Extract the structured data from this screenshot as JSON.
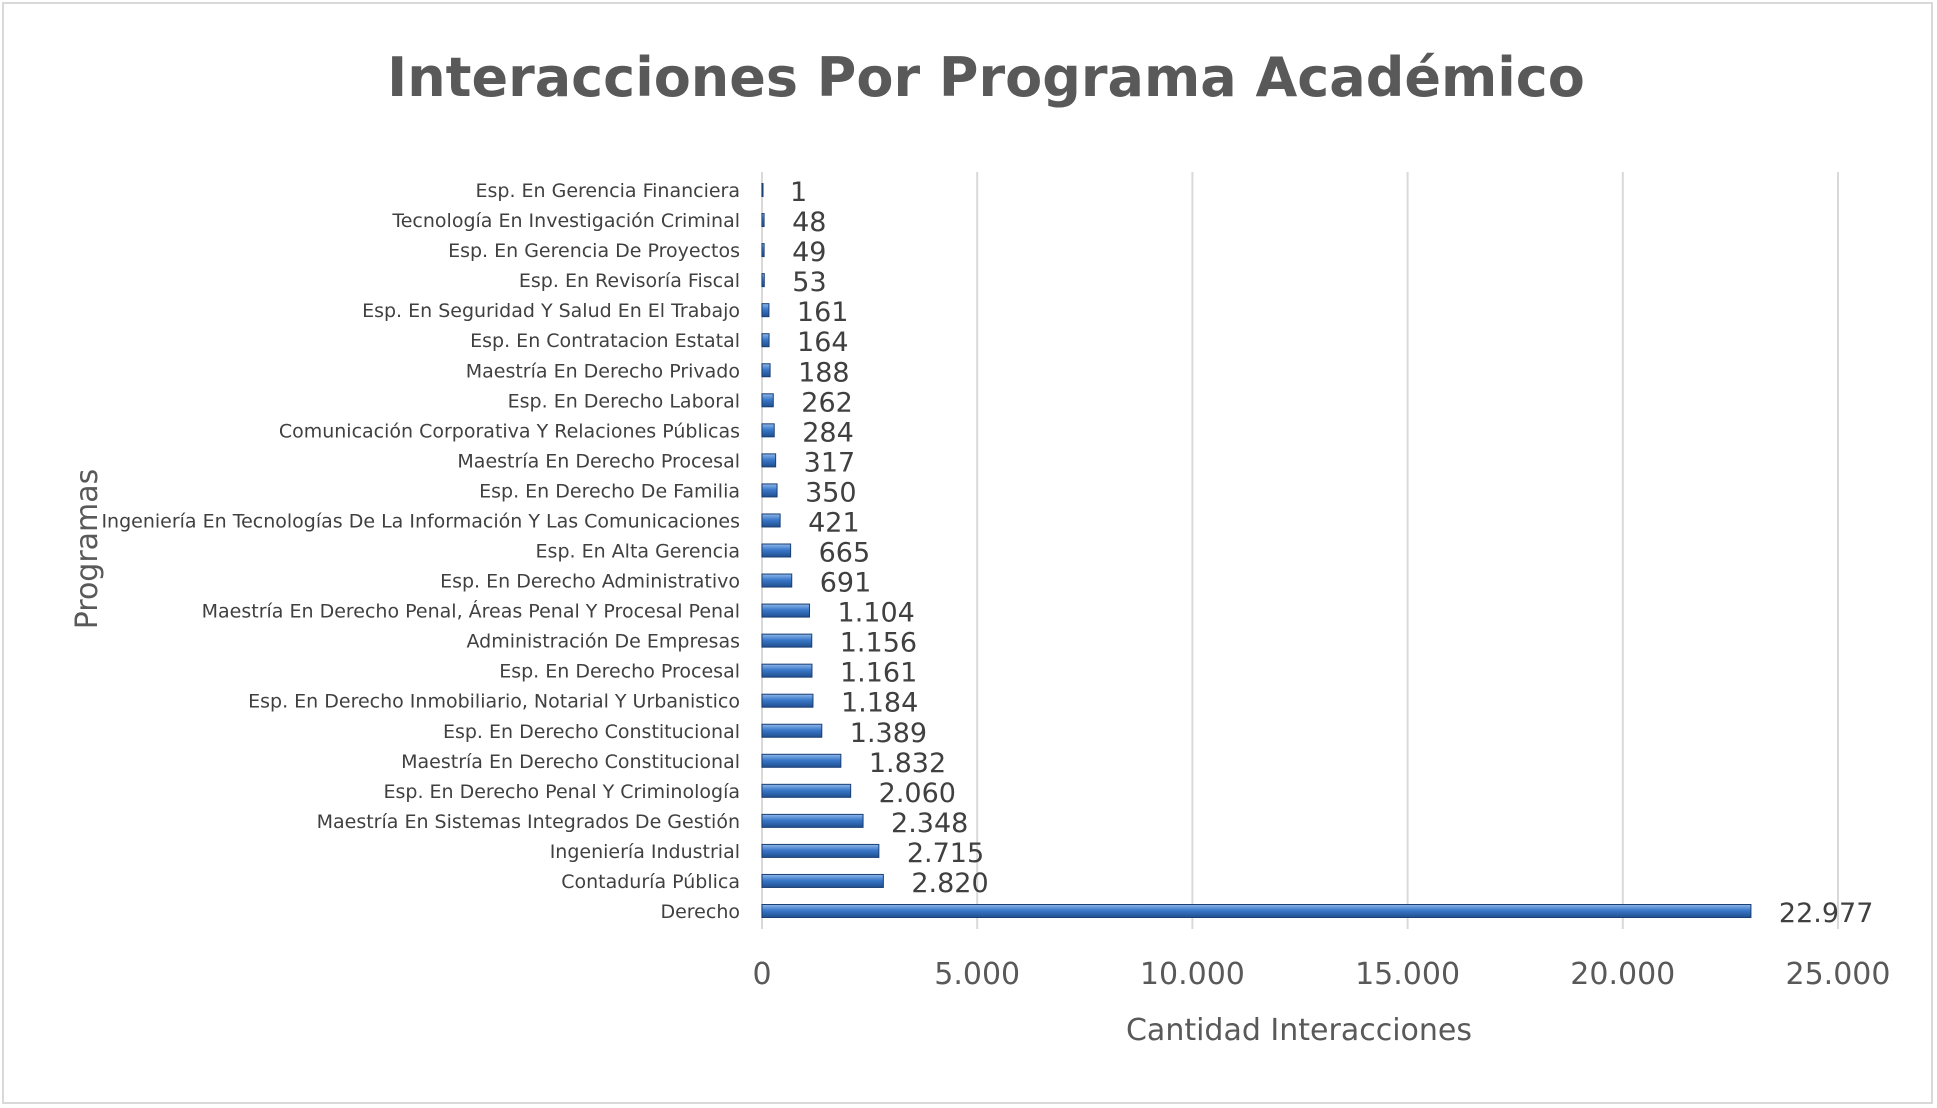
{
  "chart_data": {
    "type": "bar",
    "orientation": "horizontal",
    "title": "Interacciones Por Programa Académico",
    "xlabel": "Cantidad Interacciones",
    "ylabel": "Programas",
    "xlim": [
      0,
      25000
    ],
    "x_ticks": [
      0,
      5000,
      10000,
      15000,
      20000,
      25000
    ],
    "x_tick_labels": [
      "0",
      "5.000",
      "10.000",
      "15.000",
      "20.000",
      "25.000"
    ],
    "grid": "vertical",
    "legend": "none",
    "bar_color": "#3a78c9",
    "categories": [
      "Derecho",
      "Contaduría Pública",
      "Ingeniería Industrial",
      "Maestría En Sistemas Integrados De Gestión",
      "Esp. En Derecho Penal Y Criminología",
      "Maestría En Derecho Constitucional",
      "Esp. En Derecho Constitucional",
      "Esp. En Derecho Inmobiliario, Notarial Y Urbanistico",
      "Esp. En Derecho Procesal",
      "Administración De Empresas",
      "Maestría En Derecho Penal, Áreas Penal Y Procesal Penal",
      "Esp. En Derecho Administrativo",
      "Esp. En Alta Gerencia",
      "Ingeniería En Tecnologías De La Información Y Las Comunicaciones",
      "Esp. En Derecho De Familia",
      "Maestría En Derecho Procesal",
      "Comunicación Corporativa Y Relaciones Públicas",
      "Esp. En Derecho Laboral",
      "Maestría En Derecho Privado",
      "Esp. En Contratacion Estatal",
      "Esp. En Seguridad Y Salud En El Trabajo",
      "Esp. En Revisoría Fiscal",
      "Esp. En Gerencia De Proyectos",
      "Tecnología En Investigación Criminal",
      "Esp. En Gerencia Financiera"
    ],
    "values": [
      22977,
      2820,
      2715,
      2348,
      2060,
      1832,
      1389,
      1184,
      1161,
      1156,
      1104,
      691,
      665,
      421,
      350,
      317,
      284,
      262,
      188,
      164,
      161,
      53,
      49,
      48,
      1
    ],
    "value_labels": [
      "22.977",
      "2.820",
      "2.715",
      "2.348",
      "2.060",
      "1.832",
      "1.389",
      "1.184",
      "1.161",
      "1.156",
      "1.104",
      "691",
      "665",
      "421",
      "350",
      "317",
      "284",
      "262",
      "188",
      "164",
      "161",
      "53",
      "49",
      "48",
      "1"
    ]
  }
}
